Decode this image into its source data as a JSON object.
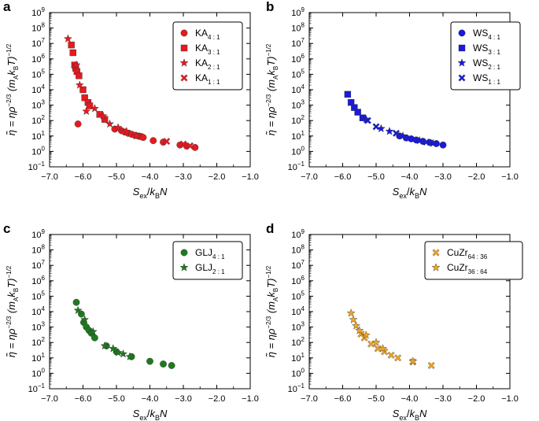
{
  "colors": {
    "red": "#e8191f",
    "blue": "#1a1adc",
    "green": "#1e7a1e",
    "orange": "#f1a424"
  },
  "chart_data": [
    {
      "panel": "a",
      "type": "scatter",
      "xlabel": "S_ex/k_B N",
      "ylabel": "η̃ = ηρ^(−2/3) (m_A k_B T)^(−1/2)",
      "xlim": [
        -7.0,
        -1.0
      ],
      "ylim_log10": [
        -1,
        9
      ],
      "x_ticks": [
        "−7.0",
        "−6.0",
        "−5.0",
        "−4.0",
        "−3.0",
        "−2.0",
        "−1.0"
      ],
      "y_ticks": [
        "10^-1",
        "10^0",
        "10^1",
        "10^2",
        "10^3",
        "10^4",
        "10^5",
        "10^6",
        "10^7",
        "10^8",
        "10^9"
      ],
      "legend_position": "top-right",
      "series": [
        {
          "name": "KA",
          "sub": "4 : 1",
          "marker": "circle",
          "color": "#e8191f",
          "x": [
            -6.15,
            -5.05,
            -4.85,
            -4.75,
            -4.65,
            -4.55,
            -4.45,
            -4.35,
            -4.3,
            -4.25,
            -4.2,
            -3.9,
            -3.6,
            -3.1,
            -2.9,
            -2.65
          ],
          "y": [
            60,
            28,
            22,
            18,
            15,
            13,
            11,
            10,
            9.5,
            9,
            8,
            5,
            4,
            2.6,
            2.2,
            1.8
          ]
        },
        {
          "name": "KA",
          "sub": "3 : 1",
          "marker": "square",
          "color": "#e8191f",
          "x": [
            -6.35,
            -6.3,
            -6.25,
            -6.22,
            -6.18,
            -6.12,
            -6.0,
            -5.95,
            -5.85,
            -5.8,
            -5.5,
            -5.35
          ],
          "y": [
            8000000,
            2500000,
            400000,
            250000,
            150000,
            80000,
            10000,
            3000,
            1500,
            900,
            250,
            120
          ]
        },
        {
          "name": "KA",
          "sub": "2 : 1",
          "marker": "star",
          "color": "#e8191f",
          "x": [
            -6.45,
            -6.2,
            -6.1,
            -5.9,
            -5.65,
            -5.4,
            -5.2,
            -4.95,
            -4.7,
            -4.4
          ],
          "y": [
            20000000,
            400000,
            20000,
            400,
            600,
            200,
            60,
            35,
            20,
            10
          ]
        },
        {
          "name": "KA",
          "sub": "1 : 1",
          "marker": "cross",
          "color": "#e8191f",
          "x": [
            -3.5,
            -3.0,
            -2.8
          ],
          "y": [
            4.5,
            3,
            2.3
          ]
        }
      ]
    },
    {
      "panel": "b",
      "type": "scatter",
      "xlabel": "S_ex/k_B N",
      "ylabel": "η̃ = ηρ^(−2/3) (m_A k_B T)^(−1/2)",
      "xlim": [
        -7.0,
        -1.0
      ],
      "ylim_log10": [
        -1,
        9
      ],
      "x_ticks": [
        "−7.0",
        "−6.0",
        "−5.0",
        "−4.0",
        "−3.0",
        "−2.0",
        "−1.0"
      ],
      "y_ticks": [
        "10^-1",
        "10^0",
        "10^1",
        "10^2",
        "10^3",
        "10^4",
        "10^5",
        "10^6",
        "10^7",
        "10^8",
        "10^9"
      ],
      "legend_position": "top-right",
      "series": [
        {
          "name": "WS",
          "sub": "4 : 1",
          "marker": "circle",
          "color": "#1a1adc",
          "x": [
            -4.3,
            -4.1,
            -3.95,
            -3.8,
            -3.6,
            -3.4,
            -3.2,
            -3.0
          ],
          "y": [
            10,
            7.5,
            6.5,
            5.5,
            4.5,
            3.8,
            3.2,
            2.6
          ]
        },
        {
          "name": "WS",
          "sub": "3 : 1",
          "marker": "square",
          "color": "#1a1adc",
          "x": [
            -5.85,
            -5.75,
            -5.65,
            -5.55,
            -5.4
          ],
          "y": [
            5000,
            1500,
            700,
            350,
            150
          ]
        },
        {
          "name": "WS",
          "sub": "2 : 1",
          "marker": "star",
          "color": "#1a1adc",
          "x": [
            -5.3,
            -4.85,
            -4.6,
            -4.2,
            -3.7,
            -3.3
          ],
          "y": [
            120,
            30,
            20,
            10,
            5,
            3.3
          ]
        },
        {
          "name": "WS",
          "sub": "1 : 1",
          "marker": "cross",
          "color": "#1a1adc",
          "x": [
            -5.25,
            -5.0,
            -4.4,
            -3.5
          ],
          "y": [
            100,
            40,
            15,
            4
          ]
        }
      ]
    },
    {
      "panel": "c",
      "type": "scatter",
      "xlabel": "S_ex/k_B N",
      "ylabel": "η̃ = ηρ^(−2/3) (m_A k_B T)^(−1/2)",
      "xlim": [
        -7.0,
        -1.0
      ],
      "ylim_log10": [
        -1,
        9
      ],
      "x_ticks": [
        "−7.0",
        "−6.0",
        "−5.0",
        "−4.0",
        "−3.0",
        "−2.0",
        "−1.0"
      ],
      "y_ticks": [
        "10^-1",
        "10^0",
        "10^1",
        "10^2",
        "10^3",
        "10^4",
        "10^5",
        "10^6",
        "10^7",
        "10^8",
        "10^9"
      ],
      "legend_position": "top-right",
      "series": [
        {
          "name": "GLJ",
          "sub": "4 : 1",
          "marker": "circle",
          "color": "#1e7a1e",
          "x": [
            -6.2,
            -6.05,
            -5.98,
            -5.9,
            -5.82,
            -5.75,
            -5.65,
            -5.3,
            -5.0,
            -4.55,
            -4.0,
            -3.6,
            -3.35
          ],
          "y": [
            40000,
            7000,
            2000,
            1000,
            600,
            400,
            200,
            60,
            25,
            12,
            6,
            4,
            3.2
          ]
        },
        {
          "name": "GLJ",
          "sub": "2 : 1",
          "marker": "star",
          "color": "#1e7a1e",
          "x": [
            -6.15,
            -5.95,
            -5.7,
            -5.35,
            -5.1,
            -4.95,
            -4.8,
            -4.6
          ],
          "y": [
            12000,
            3000,
            500,
            60,
            40,
            22,
            18,
            12
          ]
        }
      ]
    },
    {
      "panel": "d",
      "type": "scatter",
      "xlabel": "S_ex/k_B N",
      "ylabel": "η̃ = ηρ^(−2/3) (m_A k_B T)^(−1/2)",
      "xlim": [
        -7.0,
        -1.0
      ],
      "ylim_log10": [
        -1,
        9
      ],
      "x_ticks": [
        "−7.0",
        "−6.0",
        "−5.0",
        "−4.0",
        "−3.0",
        "−2.0",
        "−1.0"
      ],
      "y_ticks": [
        "10^-1",
        "10^0",
        "10^1",
        "10^2",
        "10^3",
        "10^4",
        "10^5",
        "10^6",
        "10^7",
        "10^8",
        "10^9"
      ],
      "legend_position": "top-right",
      "series": [
        {
          "name": "CuZr",
          "sub": "64 : 36",
          "marker": "cross",
          "color": "#f1a424",
          "x": [
            -5.45,
            -5.35,
            -5.15,
            -4.95,
            -4.75,
            -4.55,
            -4.35,
            -3.9,
            -3.35
          ],
          "y": [
            350,
            200,
            80,
            40,
            25,
            15,
            10,
            5.5,
            3.2
          ]
        },
        {
          "name": "CuZr",
          "sub": "36 : 64",
          "marker": "star",
          "color": "#f1a424",
          "x": [
            -5.75,
            -5.68,
            -5.6,
            -5.5,
            -5.3,
            -5.0,
            -4.8,
            -3.9
          ],
          "y": [
            8000,
            3000,
            1200,
            600,
            300,
            100,
            40,
            6
          ]
        }
      ]
    }
  ]
}
